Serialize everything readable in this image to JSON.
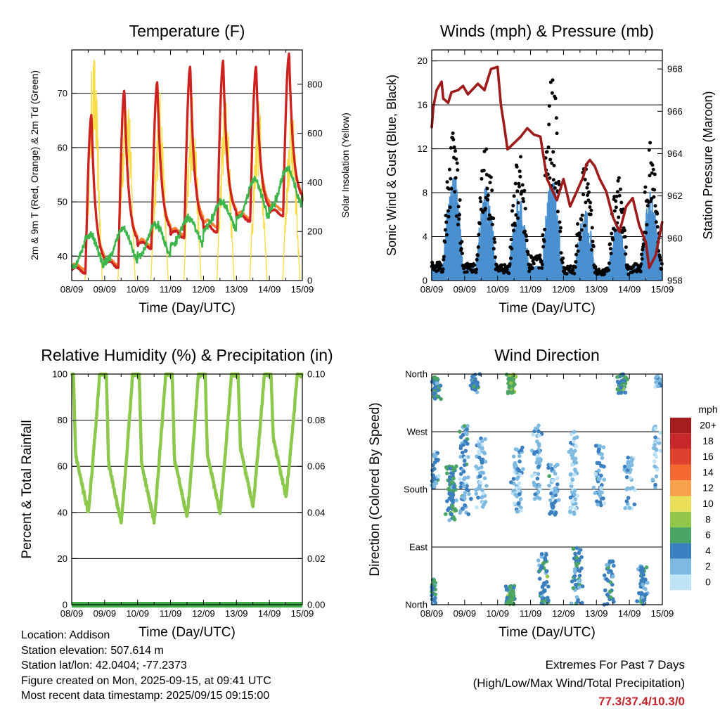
{
  "chart_data": [
    {
      "type": "line",
      "title": "Temperature (F)",
      "xlabel": "Time (Day/UTC)",
      "ylabel": "2m & 9m T (Red, Orange) & 2m Td (Green)",
      "y2label": "Solar Insolation (Yellow)",
      "x_ticks": [
        "08/09",
        "09/09",
        "10/09",
        "11/09",
        "12/09",
        "13/09",
        "14/09",
        "15/09"
      ],
      "ylim": [
        35.5,
        78
      ],
      "y_ticks": [
        40,
        50,
        60,
        70
      ],
      "y2lim": [
        0,
        940
      ],
      "y2_ticks": [
        0,
        200,
        400,
        600,
        800
      ],
      "grid": "horizontal at left-axis ticks",
      "series": [
        {
          "axis": "left",
          "color": "#cc2222",
          "day_highs": [
            66,
            70.5,
            72,
            75,
            76,
            75,
            77.3
          ],
          "day_lows": [
            37.4,
            38.5,
            42,
            44,
            45,
            47,
            48,
            50
          ],
          "smoothness": "smooth"
        },
        {
          "axis": "left",
          "color": "#ff8030",
          "day_highs": [
            65,
            70,
            71.5,
            74,
            75,
            74.5,
            76.5
          ],
          "day_lows": [
            38,
            39,
            42.5,
            44.5,
            46,
            47.5,
            49,
            50.5
          ],
          "smoothness": "smooth"
        },
        {
          "axis": "left",
          "color": "#3cb54a",
          "day_highs": [
            44,
            45,
            46,
            47,
            50,
            54,
            56,
            57
          ],
          "day_lows": [
            38,
            39,
            40,
            42,
            45,
            47,
            49,
            51
          ],
          "smoothness": "noisy"
        },
        {
          "axis": "right",
          "color": "#f7dc4a",
          "day_peaks": [
            940,
            870,
            780,
            770,
            775,
            750,
            740
          ],
          "kind": "daytime pulses"
        }
      ]
    },
    {
      "type": "line",
      "title": "Winds (mph) & Pressure (mb)",
      "xlabel": "Time (Day/UTC)",
      "ylabel": "Sonic Wind & Gust (Blue, Black)",
      "y2label": "Station Pressure (Maroon)",
      "x_ticks": [
        "08/09",
        "09/09",
        "10/09",
        "11/09",
        "12/09",
        "13/09",
        "14/09",
        "15/09"
      ],
      "ylim": [
        0,
        21
      ],
      "y_ticks": [
        0,
        4,
        8,
        12,
        16,
        20
      ],
      "y2lim": [
        958,
        968.9
      ],
      "y2_ticks": [
        958,
        960,
        962,
        964,
        966,
        968
      ],
      "grid": "horizontal at left-axis ticks",
      "series": [
        {
          "axis": "left",
          "color": "#4a90d0",
          "day_peaks": [
            10.3,
            9,
            8,
            9.5,
            7,
            5.5,
            8.5
          ],
          "kind": "wind"
        },
        {
          "axis": "left",
          "color": "#000000",
          "day_peaks": [
            14,
            13,
            12,
            19.2,
            11,
            9.5,
            12.8
          ],
          "kind": "gust"
        },
        {
          "axis": "right",
          "color": "#9e1b1b",
          "x": [
            0,
            0.05,
            0.15,
            0.3,
            0.35,
            0.5,
            0.6,
            0.8,
            0.95,
            1.1,
            1.4,
            1.6,
            1.8,
            2.0,
            2.1,
            2.2,
            2.3,
            2.5,
            2.7,
            2.9,
            3.1,
            3.3,
            3.5,
            3.8,
            4.0,
            4.2,
            4.4,
            4.6,
            4.7,
            4.8,
            4.95,
            5.1,
            5.3,
            5.5,
            5.7,
            5.9,
            6.1,
            6.3,
            6.5,
            6.6,
            6.8,
            7.0
          ],
          "y": [
            965.2,
            966.2,
            967.0,
            967.4,
            966.6,
            966.4,
            966.9,
            967.0,
            967.2,
            966.8,
            967.3,
            967.0,
            968.0,
            968.1,
            966.3,
            965.3,
            964.2,
            964.5,
            964.8,
            965.2,
            964.9,
            964.8,
            962.8,
            961.8,
            962.8,
            961.5,
            962.2,
            962.9,
            963.5,
            963.7,
            963.4,
            962.8,
            962.2,
            961.0,
            960.3,
            961.5,
            961.9,
            960.6,
            959.8,
            958.6,
            959.2,
            960.8
          ],
          "kind": "pressure"
        }
      ]
    },
    {
      "type": "line",
      "title": "Relative Humidity (%) & Precipitation (in)",
      "xlabel": "Time (Day/UTC)",
      "ylabel": "Percent & Total Rainfall",
      "x_ticks": [
        "08/09",
        "09/09",
        "10/09",
        "11/09",
        "12/09",
        "13/09",
        "14/09",
        "15/09"
      ],
      "ylim": [
        0,
        100
      ],
      "y_ticks": [
        0,
        20,
        40,
        60,
        80,
        100
      ],
      "y2lim": [
        0,
        0.1
      ],
      "y2_ticks": [
        "0.00",
        "0.02",
        "0.04",
        "0.06",
        "0.08",
        "0.10"
      ],
      "grid": "horizontal at left-axis ticks",
      "series": [
        {
          "axis": "left",
          "color": "#8cc84b",
          "day_mins": [
            40,
            36,
            36,
            38,
            40,
            43,
            47
          ],
          "max": 100,
          "kind": "humidity"
        },
        {
          "axis": "right",
          "color": "#3fae49",
          "values": [
            0
          ],
          "kind": "precipitation total"
        }
      ]
    },
    {
      "type": "scatter",
      "title": "Wind Direction",
      "xlabel": "Time (Day/UTC)",
      "ylabel": "Direction (Colored By Speed)",
      "x_ticks": [
        "08/09",
        "09/09",
        "10/09",
        "11/09",
        "12/09",
        "13/09",
        "14/09",
        "15/09"
      ],
      "y_ticks": [
        "North",
        "East",
        "South",
        "West",
        "North"
      ],
      "legend": {
        "title": "mph",
        "placement": "right",
        "labels": [
          "20+",
          "18",
          "16",
          "14",
          "12",
          "10",
          "8",
          "6",
          "4",
          "2",
          "0"
        ],
        "colors": [
          "#a51d1d",
          "#c62728",
          "#e0412e",
          "#f2682f",
          "#f7a14a",
          "#ebdf5a",
          "#93c74b",
          "#4aa563",
          "#3b7fc0",
          "#7eb9e2",
          "#bfe3f7"
        ]
      },
      "clusters": [
        {
          "day": 0,
          "dir": [
            0,
            40
          ],
          "count": 60,
          "speed": 5
        },
        {
          "day": 0.1,
          "dir": [
            320,
            360
          ],
          "count": 50,
          "speed": 5
        },
        {
          "day": 0.1,
          "dir": [
            180,
            240
          ],
          "count": 30,
          "speed": 3
        },
        {
          "day": 0.6,
          "dir": [
            130,
            220
          ],
          "count": 70,
          "speed": 5
        },
        {
          "day": 1.0,
          "dir": [
            140,
            280
          ],
          "count": 70,
          "speed": 3
        },
        {
          "day": 1.3,
          "dir": [
            330,
            360
          ],
          "count": 25,
          "speed": 4
        },
        {
          "day": 1.5,
          "dir": [
            150,
            260
          ],
          "count": 60,
          "speed": 2
        },
        {
          "day": 2.4,
          "dir": [
            0,
            30
          ],
          "count": 60,
          "speed": 6
        },
        {
          "day": 2.4,
          "dir": [
            330,
            360
          ],
          "count": 40,
          "speed": 6
        },
        {
          "day": 2.6,
          "dir": [
            140,
            250
          ],
          "count": 60,
          "speed": 2
        },
        {
          "day": 3.2,
          "dir": [
            160,
            280
          ],
          "count": 60,
          "speed": 2
        },
        {
          "day": 3.4,
          "dir": [
            0,
            80
          ],
          "count": 50,
          "speed": 4
        },
        {
          "day": 3.7,
          "dir": [
            140,
            220
          ],
          "count": 50,
          "speed": 3
        },
        {
          "day": 4.3,
          "dir": [
            140,
            270
          ],
          "count": 60,
          "speed": 2
        },
        {
          "day": 4.4,
          "dir": [
            0,
            90
          ],
          "count": 50,
          "speed": 4
        },
        {
          "day": 5.1,
          "dir": [
            150,
            250
          ],
          "count": 50,
          "speed": 3
        },
        {
          "day": 5.4,
          "dir": [
            0,
            70
          ],
          "count": 40,
          "speed": 4
        },
        {
          "day": 5.8,
          "dir": [
            330,
            360
          ],
          "count": 40,
          "speed": 5
        },
        {
          "day": 6.0,
          "dir": [
            150,
            230
          ],
          "count": 40,
          "speed": 2
        },
        {
          "day": 6.4,
          "dir": [
            0,
            60
          ],
          "count": 50,
          "speed": 4
        },
        {
          "day": 6.8,
          "dir": [
            180,
            280
          ],
          "count": 30,
          "speed": 1
        },
        {
          "day": 6.9,
          "dir": [
            340,
            360
          ],
          "count": 20,
          "speed": 2
        }
      ]
    }
  ],
  "footer": {
    "location": "Location: Addison",
    "elevation": "Station elevation: 507.614 m",
    "latlon": "Station lat/lon: 42.0404; -77.2373",
    "created": "Figure created on Mon, 2025-09-15, at 09:41 UTC",
    "recent": "Most recent data timestamp: 2025/09/15 09:15:00"
  },
  "extremes": {
    "heading": "Extremes For Past 7 Days",
    "subheading": "(High/Low/Max Wind/Total Precipitation)",
    "values": "77.3/37.4/10.3/0"
  }
}
